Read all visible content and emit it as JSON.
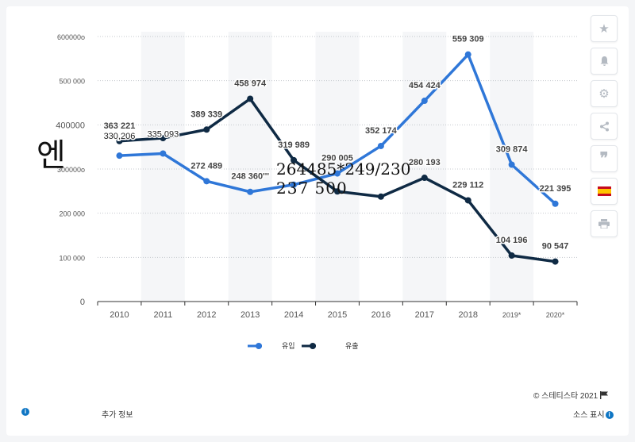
{
  "chart_data": {
    "type": "line",
    "categories": [
      "2010",
      "2011",
      "2012",
      "2013",
      "2014",
      "2015",
      "2016",
      "2017",
      "2018",
      "2019*",
      "2020*"
    ],
    "series": [
      {
        "name": "유입",
        "color": "#2f77d8",
        "values": [
          330206,
          335093,
          272489,
          248360,
          264485,
          290005,
          352174,
          454424,
          559309,
          309874,
          221395
        ],
        "labels": [
          "330,206",
          "335  093",
          "272 489",
          "248 360'''",
          "",
          "290 005",
          "352 174",
          "454 424",
          "559 309",
          "309 874",
          "221 395"
        ]
      },
      {
        "name": "유출",
        "color": "#0f2a44",
        "values": [
          363221,
          370000,
          389339,
          458974,
          319989,
          249230,
          237500,
          280193,
          229112,
          104196,
          90547
        ],
        "labels": [
          "363 221",
          "",
          "389 339",
          "458 974",
          "319 989",
          "",
          "",
          "280 193",
          "229 112",
          "104 196",
          "90 547"
        ]
      }
    ],
    "y_ticks": [
      {
        "value": 0,
        "label": "0"
      },
      {
        "value": 100000,
        "label": "100 000"
      },
      {
        "value": 200000,
        "label": "200 000"
      },
      {
        "value": 300000,
        "label": "300000o"
      },
      {
        "value": 400000,
        "label": "400000"
      },
      {
        "value": 500000,
        "label": "500 000"
      },
      {
        "value": 600000,
        "label": "600000o"
      }
    ],
    "ylim": [
      0,
      600000
    ],
    "grid": true,
    "legend_position": "bottom-left"
  },
  "overlay": {
    "line1": "264485*249/230",
    "line2": "237  500",
    "glyph": "엔"
  },
  "footer": {
    "copyright": "©  스테티스타 2021",
    "more_info": "추가 정보",
    "source": "소스 표시"
  },
  "toolbar": {
    "icons": [
      "star-icon",
      "bell-icon",
      "gear-icon",
      "share-icon",
      "quote-icon",
      "flag-icon",
      "print-icon"
    ]
  }
}
